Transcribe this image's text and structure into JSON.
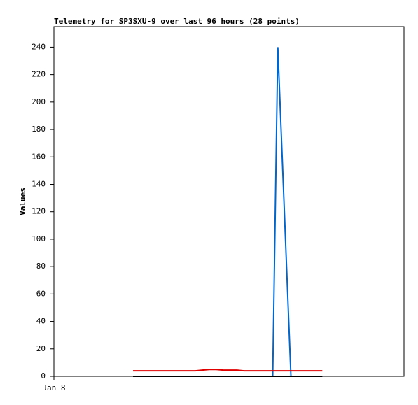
{
  "chart_data": {
    "type": "line",
    "title": "Telemetry for SP3SXU-9 over last 96 hours (28 points)",
    "y_label": "Values",
    "x": [
      21.7,
      23.6,
      25.5,
      27.4,
      29.3,
      31.2,
      33.1,
      35.0,
      36.9,
      38.8,
      40.7,
      42.6,
      44.5,
      46.4,
      48.3,
      50.2,
      52.1,
      54.0,
      55.9,
      57.8,
      60.0,
      61.4,
      65.0,
      66.7,
      68.4,
      70.1,
      71.8,
      73.6
    ],
    "xlim": [
      0,
      96
    ],
    "xticks": [
      {
        "value": 0,
        "label": "Jan 8"
      }
    ],
    "ylim": [
      0,
      255
    ],
    "yticks": [
      0,
      20,
      40,
      60,
      80,
      100,
      120,
      140,
      160,
      180,
      200,
      220,
      240
    ],
    "series": [
      {
        "color": "#0066cc",
        "values": [
          0,
          0,
          0,
          0,
          0,
          0,
          0,
          0,
          0,
          0,
          0,
          0,
          0,
          0,
          0,
          0,
          0,
          0,
          0,
          0,
          0,
          240,
          0,
          0,
          0,
          0,
          0,
          0
        ]
      },
      {
        "color": "#e00000",
        "values": [
          4,
          4,
          4,
          4,
          4,
          4,
          4,
          4,
          4,
          4,
          4.5,
          5,
          5,
          4.5,
          4.5,
          4.5,
          4,
          4,
          4,
          4,
          4,
          4,
          4,
          4,
          4,
          4,
          4,
          4
        ]
      },
      {
        "color": "#000000",
        "values": [
          0,
          0,
          0,
          0,
          0,
          0,
          0,
          0,
          0,
          0,
          0,
          0,
          0,
          0,
          0,
          0,
          0,
          0,
          0,
          0,
          0,
          0,
          0,
          0,
          0,
          0,
          0,
          0
        ]
      }
    ]
  }
}
